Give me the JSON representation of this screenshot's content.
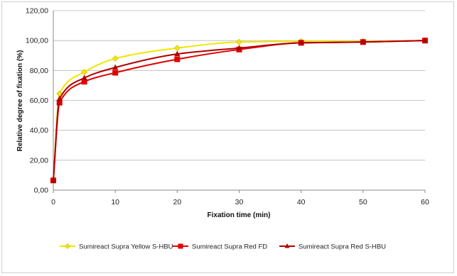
{
  "chart_data": {
    "type": "line",
    "title": "",
    "xlabel": "Fixation time (min)",
    "ylabel": "Relative degree of fixation (%)",
    "xlim": [
      0,
      60
    ],
    "ylim": [
      0,
      120
    ],
    "xticks": [
      0,
      10,
      20,
      30,
      40,
      50,
      60
    ],
    "yticks": [
      0,
      20,
      40,
      60,
      80,
      100,
      120
    ],
    "xtick_labels": [
      "0",
      "10",
      "20",
      "30",
      "40",
      "50",
      "60"
    ],
    "ytick_labels": [
      "0,00",
      "20,00",
      "40,00",
      "60,00",
      "80,00",
      "100,00",
      "120,00"
    ],
    "grid": "horizontal",
    "legend_position": "bottom",
    "series": [
      {
        "name": "Sumireact Supra Yellow S-HBU",
        "color": "#f2e600",
        "marker": "diamond",
        "x": [
          0,
          1,
          5,
          10,
          20,
          30,
          40,
          50,
          60
        ],
        "y": [
          6.5,
          64.5,
          79,
          88,
          95,
          99,
          99.5,
          99.5,
          100
        ]
      },
      {
        "name": "Sumireact Supra Red FD",
        "color": "#e00000",
        "marker": "square",
        "x": [
          0,
          1,
          5,
          10,
          20,
          30,
          40,
          50,
          60
        ],
        "y": [
          6.5,
          58.5,
          72.5,
          78.5,
          87.5,
          94,
          98.5,
          99,
          100
        ]
      },
      {
        "name": "Sumireact Supra Red S-HBU",
        "color": "#b00000",
        "marker": "triangle",
        "x": [
          0,
          1,
          5,
          10,
          20,
          30,
          40,
          50,
          60
        ],
        "y": [
          6.5,
          61,
          75,
          82,
          91,
          95,
          98.5,
          99,
          100
        ]
      }
    ]
  }
}
